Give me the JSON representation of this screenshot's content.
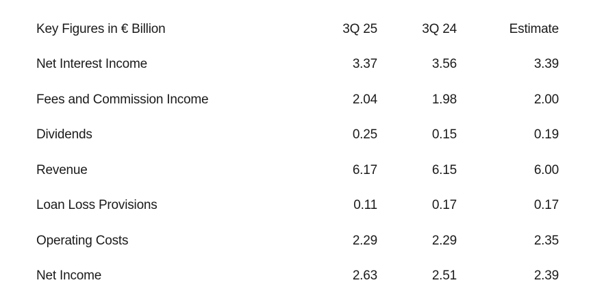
{
  "table": {
    "header": {
      "label": "Key Figures in € Billion",
      "col1": "3Q 25",
      "col2": "3Q 24",
      "col3": "Estimate"
    },
    "rows": [
      {
        "label": "Net Interest Income",
        "col1": "3.37",
        "col2": "3.56",
        "col3": "3.39"
      },
      {
        "label": "Fees and Commission Income",
        "col1": "2.04",
        "col2": "1.98",
        "col3": "2.00"
      },
      {
        "label": "Dividends",
        "col1": "0.25",
        "col2": "0.15",
        "col3": "0.19"
      },
      {
        "label": "Revenue",
        "col1": "6.17",
        "col2": "6.15",
        "col3": "6.00"
      },
      {
        "label": "Loan Loss Provisions",
        "col1": "0.11",
        "col2": "0.17",
        "col3": "0.17"
      },
      {
        "label": "Operating Costs",
        "col1": "2.29",
        "col2": "2.29",
        "col3": "2.35"
      },
      {
        "label": "Net Income",
        "col1": "2.63",
        "col2": "2.51",
        "col3": "2.39"
      }
    ]
  }
}
